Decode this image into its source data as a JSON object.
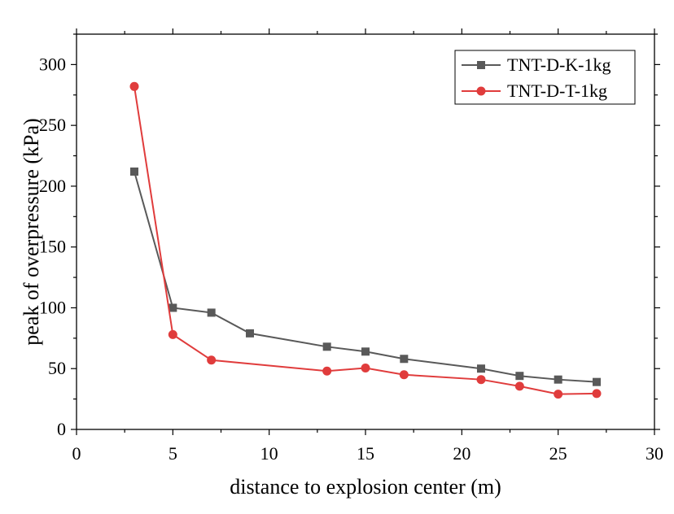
{
  "chart_data": {
    "type": "line",
    "title": "",
    "xlabel": "distance to explosion center (m)",
    "ylabel": "peak of overpressure (kPa)",
    "xlim": [
      0,
      30
    ],
    "ylim": [
      0,
      325
    ],
    "xticks": [
      0,
      5,
      10,
      15,
      20,
      25,
      30
    ],
    "yticks": [
      0,
      50,
      100,
      150,
      200,
      250,
      300
    ],
    "grid": false,
    "legend_position": "top-right",
    "series": [
      {
        "name": "TNT-D-K-1kg",
        "color": "#595959",
        "marker": "square",
        "x": [
          3,
          5,
          7,
          9,
          13,
          15,
          17,
          21,
          23,
          25,
          27
        ],
        "y": [
          212,
          100,
          96,
          79,
          68,
          64,
          58,
          50,
          44,
          41,
          39
        ]
      },
      {
        "name": "TNT-D-T-1kg",
        "color": "#e03c3c",
        "marker": "circle",
        "x": [
          3,
          5,
          7,
          13,
          15,
          17,
          21,
          23,
          25,
          27
        ],
        "y": [
          282,
          78,
          57,
          48,
          50.5,
          45,
          41,
          35.5,
          29,
          29.5
        ]
      }
    ]
  }
}
